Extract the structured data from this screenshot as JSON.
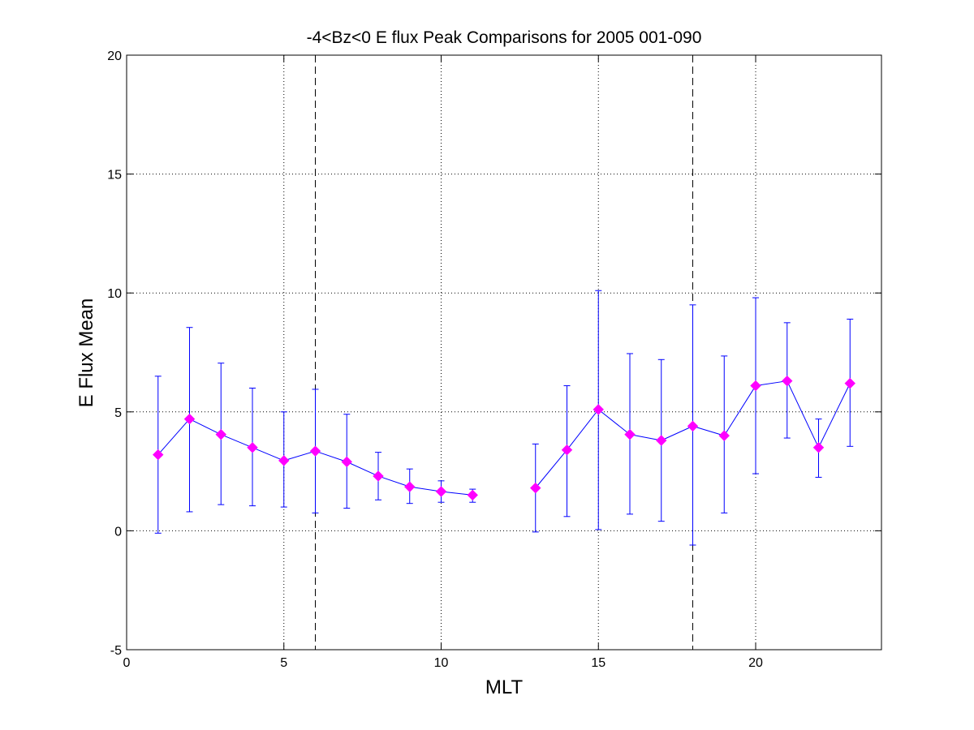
{
  "chart_data": {
    "type": "line",
    "title": "-4<Bz<0 E flux Peak Comparisons for 2005 001-090",
    "xlabel": "MLT",
    "ylabel": "E Flux Mean",
    "xlim": [
      0,
      24
    ],
    "ylim": [
      -5,
      20
    ],
    "xticks": [
      0,
      5,
      10,
      15,
      20
    ],
    "yticks": [
      -5,
      0,
      5,
      10,
      15,
      20
    ],
    "grid": true,
    "vertical_reference_lines": [
      6,
      18
    ],
    "series": [
      {
        "style": "errorbar",
        "line_color": "#0000ff",
        "marker_color": "#ff00ff",
        "marker": "diamond",
        "points": [
          {
            "x": 1,
            "y": 3.2,
            "lower": -0.1,
            "upper": 6.5
          },
          {
            "x": 2,
            "y": 4.7,
            "lower": 0.8,
            "upper": 8.55
          },
          {
            "x": 3,
            "y": 4.05,
            "lower": 1.1,
            "upper": 7.05
          },
          {
            "x": 4,
            "y": 3.5,
            "lower": 1.05,
            "upper": 6.0
          },
          {
            "x": 5,
            "y": 2.95,
            "lower": 1.0,
            "upper": 5.0
          },
          {
            "x": 6,
            "y": 3.35,
            "lower": 0.75,
            "upper": 5.95
          },
          {
            "x": 7,
            "y": 2.9,
            "lower": 0.95,
            "upper": 4.9
          },
          {
            "x": 8,
            "y": 2.3,
            "lower": 1.3,
            "upper": 3.3
          },
          {
            "x": 9,
            "y": 1.85,
            "lower": 1.15,
            "upper": 2.6
          },
          {
            "x": 10,
            "y": 1.65,
            "lower": 1.2,
            "upper": 2.1
          },
          {
            "x": 11,
            "y": 1.5,
            "lower": 1.2,
            "upper": 1.75
          },
          {
            "x": 13,
            "y": 1.8,
            "lower": -0.05,
            "upper": 3.65
          },
          {
            "x": 14,
            "y": 3.4,
            "lower": 0.6,
            "upper": 6.1
          },
          {
            "x": 15,
            "y": 5.1,
            "lower": 0.05,
            "upper": 10.1
          },
          {
            "x": 16,
            "y": 4.05,
            "lower": 0.7,
            "upper": 7.45
          },
          {
            "x": 17,
            "y": 3.8,
            "lower": 0.4,
            "upper": 7.2
          },
          {
            "x": 18,
            "y": 4.4,
            "lower": -0.6,
            "upper": 9.5
          },
          {
            "x": 19,
            "y": 4.0,
            "lower": 0.75,
            "upper": 7.35
          },
          {
            "x": 20,
            "y": 6.1,
            "lower": 2.4,
            "upper": 9.8
          },
          {
            "x": 21,
            "y": 6.3,
            "lower": 3.9,
            "upper": 8.75
          },
          {
            "x": 22,
            "y": 3.5,
            "lower": 2.25,
            "upper": 4.7
          },
          {
            "x": 23,
            "y": 6.2,
            "lower": 3.55,
            "upper": 8.9
          }
        ]
      }
    ]
  }
}
